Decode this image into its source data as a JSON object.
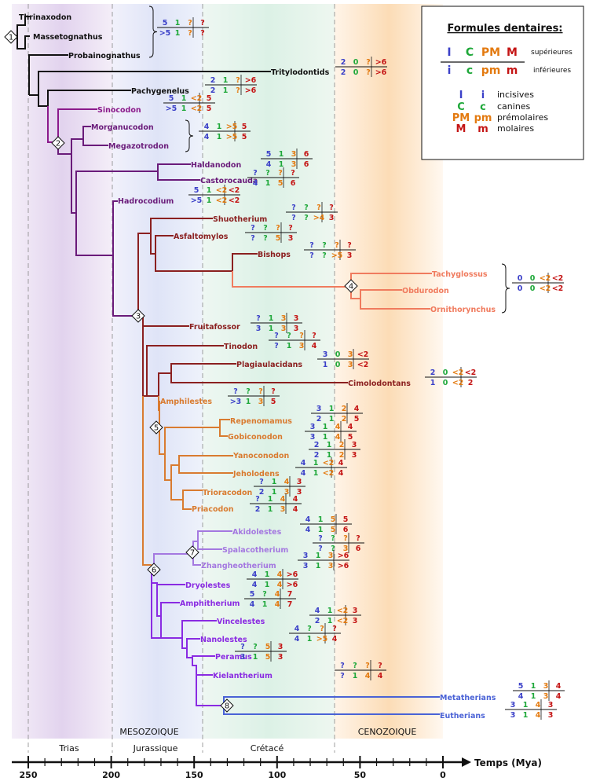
{
  "colors": {
    "black": "#111111",
    "purple": "#6a1b7a",
    "violet": "#8b1a8b",
    "brown": "#8b2020",
    "orange": "#d97b30",
    "salmon": "#f07b5e",
    "lavender": "#a478e0",
    "grape": "#8a2be2",
    "blue": "#4a62d6",
    "incisor": "#3b40c8",
    "canine": "#1fa83a",
    "premolar": "#e37a10",
    "molar": "#c41414"
  },
  "axis": {
    "label": "Temps (Mya)",
    "ticks": [
      "250",
      "200",
      "150",
      "100",
      "50",
      "0"
    ]
  },
  "periods": {
    "era1": "MESOZOIQUE",
    "era2": "CENOZOIQUE",
    "p1": "Trias",
    "p2": "Jurassique",
    "p3": "Crétacé"
  },
  "legend": {
    "title": "Formules dentaires:",
    "upper_I": "I",
    "upper_C": "C",
    "upper_PM": "PM",
    "upper_M": "M",
    "lower_i": "i",
    "lower_c": "c",
    "lower_pm": "pm",
    "lower_m": "m",
    "sup": "supérieures",
    "inf": "inférieures",
    "k1a": "I",
    "k1b": "i",
    "k1": "incisives",
    "k2a": "C",
    "k2b": "c",
    "k2": "canines",
    "k3a": "PM",
    "k3b": "pm",
    "k3": "prémolaires",
    "k4a": "M",
    "k4b": "m",
    "k4": "molaires"
  },
  "nodes": [
    "1",
    "2",
    "3",
    "4",
    "5",
    "6",
    "7",
    "8"
  ],
  "taxa": [
    {
      "name": "Thrinaxodon",
      "color": "black"
    },
    {
      "name": "Massetognathus",
      "color": "black"
    },
    {
      "name": "Probainognathus",
      "color": "black"
    },
    {
      "name": "Tritylodontids",
      "color": "black"
    },
    {
      "name": "Pachygenelus",
      "color": "black"
    },
    {
      "name": "Sinocodon",
      "color": "violet"
    },
    {
      "name": "Morganucodon",
      "color": "purple"
    },
    {
      "name": "Megazotrodon",
      "color": "purple"
    },
    {
      "name": "Haldanodon",
      "color": "purple"
    },
    {
      "name": "Castorocauda",
      "color": "purple"
    },
    {
      "name": "Hadrocodium",
      "color": "purple"
    },
    {
      "name": "Shuotherium",
      "color": "brown"
    },
    {
      "name": "Asfaltomylos",
      "color": "brown"
    },
    {
      "name": "Bishops",
      "color": "brown"
    },
    {
      "name": "Tachyglossus",
      "color": "salmon"
    },
    {
      "name": "Obdurodon",
      "color": "salmon"
    },
    {
      "name": "Ornithorynchus",
      "color": "salmon"
    },
    {
      "name": "Fruitafossor",
      "color": "brown"
    },
    {
      "name": "Tinodon",
      "color": "brown"
    },
    {
      "name": "Plagiaulacidans",
      "color": "brown"
    },
    {
      "name": "Cimolodontans",
      "color": "brown"
    },
    {
      "name": "Amphilestes",
      "color": "orange"
    },
    {
      "name": "Repenomamus",
      "color": "orange"
    },
    {
      "name": "Gobiconodon",
      "color": "orange"
    },
    {
      "name": "Yanoconodon",
      "color": "orange"
    },
    {
      "name": "Jeholodens",
      "color": "orange"
    },
    {
      "name": "Trioracodon",
      "color": "orange"
    },
    {
      "name": "Priacodon",
      "color": "orange"
    },
    {
      "name": "Akidolestes",
      "color": "lavender"
    },
    {
      "name": "Spalacotherium",
      "color": "lavender"
    },
    {
      "name": "Zhangheotherium",
      "color": "lavender"
    },
    {
      "name": "Dryolestes",
      "color": "grape"
    },
    {
      "name": "Amphitherium",
      "color": "grape"
    },
    {
      "name": "Vincelestes",
      "color": "grape"
    },
    {
      "name": "Nanolestes",
      "color": "grape"
    },
    {
      "name": "Peramus",
      "color": "grape"
    },
    {
      "name": "Kielantherium",
      "color": "grape"
    },
    {
      "name": "Metatherians",
      "color": "blue"
    },
    {
      "name": "Eutherians",
      "color": "blue"
    }
  ],
  "formulas": [
    {
      "upper": [
        "5",
        "1",
        "?",
        "?"
      ],
      "lower": [
        ">5",
        "1",
        "?",
        "?"
      ]
    },
    {
      "upper": [
        "2",
        "0",
        "?",
        ">6"
      ],
      "lower": [
        "2",
        "0",
        "?",
        ">6"
      ]
    },
    {
      "upper": [
        "2",
        "1",
        "?",
        ">6"
      ],
      "lower": [
        "2",
        "1",
        "?",
        ">6"
      ]
    },
    {
      "upper": [
        "5",
        "1",
        "<2",
        "5"
      ],
      "lower": [
        ">5",
        "1",
        "<2",
        "5"
      ]
    },
    {
      "upper": [
        "4",
        "1",
        ">5",
        "5"
      ],
      "lower": [
        "4",
        "1",
        ">5",
        "5"
      ]
    },
    {
      "upper": [
        "5",
        "1",
        "3",
        "6"
      ],
      "lower": [
        "4",
        "1",
        "3",
        "6"
      ]
    },
    {
      "upper": [
        "?",
        "?",
        "?",
        "?"
      ],
      "lower": [
        "4",
        "1",
        "5",
        "6"
      ]
    },
    {
      "upper": [
        "5",
        "1",
        "<2",
        "<2"
      ],
      "lower": [
        ">5",
        "1",
        "<2",
        "<2"
      ]
    },
    {
      "upper": [
        "?",
        "?",
        "?",
        "?"
      ],
      "lower": [
        "?",
        "?",
        ">4",
        "3"
      ]
    },
    {
      "upper": [
        "?",
        "?",
        "?",
        "?"
      ],
      "lower": [
        "?",
        "?",
        "5",
        "3"
      ]
    },
    {
      "upper": [
        "?",
        "?",
        "?",
        "?"
      ],
      "lower": [
        "?",
        "?",
        ">5",
        "3"
      ]
    },
    {
      "upper": [
        "0",
        "0",
        "<2",
        "<2"
      ],
      "lower": [
        "0",
        "0",
        "<2",
        "<2"
      ]
    },
    {
      "upper": [
        "?",
        "1",
        "3",
        "3"
      ],
      "lower": [
        "3",
        "1",
        "3",
        "3"
      ]
    },
    {
      "upper": [
        "?",
        "?",
        "?",
        "?"
      ],
      "lower": [
        "?",
        "1",
        "3",
        "4"
      ]
    },
    {
      "upper": [
        "3",
        "0",
        "3",
        "<2"
      ],
      "lower": [
        "1",
        "0",
        "3",
        "<2"
      ]
    },
    {
      "upper": [
        "2",
        "0",
        "<2",
        "<2"
      ],
      "lower": [
        "1",
        "0",
        "<2",
        "2"
      ]
    },
    {
      "upper": [
        "?",
        "?",
        "?",
        "?"
      ],
      "lower": [
        ">3",
        "1",
        "3",
        "5"
      ]
    },
    {
      "upper": [
        "3",
        "1",
        "2",
        "4"
      ],
      "lower": [
        "2",
        "1",
        "2",
        "5"
      ]
    },
    {
      "upper": [
        "3",
        "1",
        "4",
        "4"
      ],
      "lower": [
        "3",
        "1",
        "4",
        "5"
      ]
    },
    {
      "upper": [
        "2",
        "1",
        "2",
        "3"
      ],
      "lower": [
        "2",
        "1",
        "2",
        "3"
      ]
    },
    {
      "upper": [
        "4",
        "1",
        "<2",
        "4"
      ],
      "lower": [
        "4",
        "1",
        "<2",
        "4"
      ]
    },
    {
      "upper": [
        "?",
        "1",
        "4",
        "3"
      ],
      "lower": [
        "2",
        "1",
        "3",
        "3"
      ]
    },
    {
      "upper": [
        "?",
        "1",
        "4",
        "4"
      ],
      "lower": [
        "2",
        "1",
        "3",
        "4"
      ]
    },
    {
      "upper": [
        "4",
        "1",
        "5",
        "5"
      ],
      "lower": [
        "4",
        "1",
        "5",
        "6"
      ]
    },
    {
      "upper": [
        "?",
        "?",
        "?",
        "?"
      ],
      "lower": [
        "?",
        "?",
        "3",
        "6"
      ]
    },
    {
      "upper": [
        "3",
        "1",
        "3",
        ">6"
      ],
      "lower": [
        "3",
        "1",
        "3",
        ">6"
      ]
    },
    {
      "upper": [
        "4",
        "1",
        "4",
        ">6"
      ],
      "lower": [
        "4",
        "1",
        "4",
        ">6"
      ]
    },
    {
      "upper": [
        "5",
        "?",
        "4",
        "7"
      ],
      "lower": [
        "4",
        "1",
        "4",
        "7"
      ]
    },
    {
      "upper": [
        "4",
        "1",
        "<2",
        "3"
      ],
      "lower": [
        "2",
        "1",
        "<2",
        "3"
      ]
    },
    {
      "upper": [
        "4",
        "?",
        "?",
        "?"
      ],
      "lower": [
        "4",
        "1",
        ">5",
        "4"
      ]
    },
    {
      "upper": [
        "?",
        "?",
        "5",
        "3"
      ],
      "lower": [
        "3",
        "1",
        "5",
        "3"
      ]
    },
    {
      "upper": [
        "?",
        "?",
        "?",
        "?"
      ],
      "lower": [
        "?",
        "1",
        "4",
        "4"
      ]
    },
    {
      "upper": [
        "5",
        "1",
        "3",
        "4"
      ],
      "lower": [
        "4",
        "1",
        "3",
        "4"
      ]
    },
    {
      "upper": [
        "3",
        "1",
        "4",
        "3"
      ],
      "lower": [
        "3",
        "1",
        "4",
        "3"
      ]
    }
  ]
}
